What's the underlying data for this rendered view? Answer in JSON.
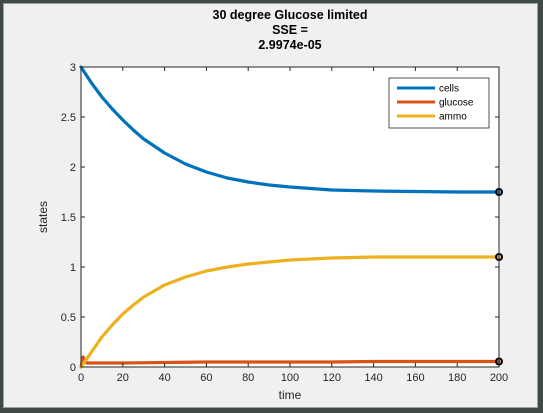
{
  "chart_data": {
    "type": "line",
    "title": [
      "30 degree Glucose limited",
      "SSE =",
      "2.9974e-05"
    ],
    "xlabel": "time",
    "ylabel": "states",
    "xlim": [
      0,
      200
    ],
    "ylim": [
      0,
      3
    ],
    "xticks": [
      0,
      20,
      40,
      60,
      80,
      100,
      120,
      140,
      160,
      180,
      200
    ],
    "yticks": [
      0,
      0.5,
      1,
      1.5,
      2,
      2.5,
      3
    ],
    "xtick_labels": [
      "0",
      "20",
      "40",
      "60",
      "80",
      "100",
      "120",
      "140",
      "160",
      "180",
      "200"
    ],
    "ytick_labels": [
      "0",
      "0.5",
      "1",
      "1.5",
      "2",
      "2.5",
      "3"
    ],
    "grid": false,
    "legend_position": "top-right",
    "series": [
      {
        "name": "cells",
        "color": "#0072bd",
        "x": [
          0,
          5,
          10,
          15,
          20,
          25,
          30,
          40,
          50,
          60,
          70,
          80,
          90,
          100,
          120,
          140,
          160,
          180,
          200
        ],
        "values": [
          3.0,
          2.84,
          2.7,
          2.58,
          2.47,
          2.37,
          2.28,
          2.14,
          2.03,
          1.95,
          1.89,
          1.85,
          1.82,
          1.8,
          1.77,
          1.76,
          1.755,
          1.75,
          1.75
        ]
      },
      {
        "name": "glucose",
        "color": "#d95319",
        "x": [
          0,
          1,
          2,
          3,
          5,
          10,
          20,
          40,
          60,
          80,
          100,
          120,
          140,
          160,
          180,
          200
        ],
        "values": [
          0.0,
          0.1,
          0.05,
          0.04,
          0.04,
          0.04,
          0.04,
          0.045,
          0.05,
          0.05,
          0.05,
          0.05,
          0.055,
          0.055,
          0.055,
          0.055
        ]
      },
      {
        "name": "ammo",
        "color": "#edb120",
        "x": [
          0,
          5,
          10,
          15,
          20,
          25,
          30,
          40,
          50,
          60,
          70,
          80,
          90,
          100,
          120,
          140,
          160,
          180,
          200
        ],
        "values": [
          0.0,
          0.15,
          0.3,
          0.42,
          0.53,
          0.62,
          0.7,
          0.82,
          0.9,
          0.96,
          1.0,
          1.03,
          1.05,
          1.07,
          1.09,
          1.1,
          1.1,
          1.1,
          1.1
        ]
      }
    ],
    "endpoint_markers": [
      {
        "x": 200,
        "y": 1.75
      },
      {
        "x": 200,
        "y": 1.1
      },
      {
        "x": 200,
        "y": 0.055
      }
    ]
  }
}
